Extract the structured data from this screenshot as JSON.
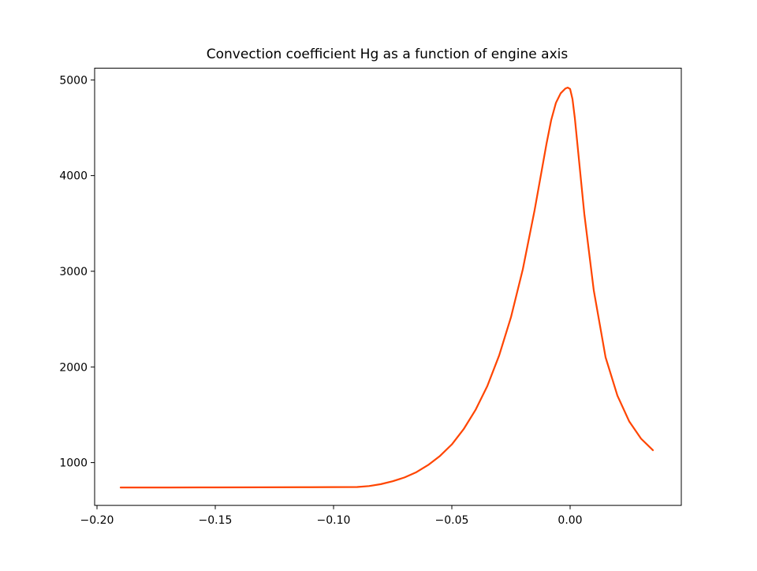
{
  "chart_data": {
    "type": "line",
    "title": "Convection coefficient Hg as a function of engine axis",
    "xlabel": "",
    "ylabel": "",
    "xlim": [
      -0.201,
      0.047
    ],
    "ylim": [
      553,
      5123
    ],
    "x_ticks": [
      -0.2,
      -0.15,
      -0.1,
      -0.05,
      0.0
    ],
    "x_tick_labels": [
      "−0.20",
      "−0.15",
      "−0.10",
      "−0.05",
      "0.00"
    ],
    "y_ticks": [
      1000,
      2000,
      3000,
      4000,
      5000
    ],
    "y_tick_labels": [
      "1000",
      "2000",
      "3000",
      "4000",
      "5000"
    ],
    "grid": false,
    "legend": "none",
    "series": [
      {
        "color": "#ff4500",
        "x": [
          -0.19,
          -0.17,
          -0.15,
          -0.13,
          -0.11,
          -0.09,
          -0.085,
          -0.08,
          -0.075,
          -0.07,
          -0.065,
          -0.06,
          -0.055,
          -0.05,
          -0.045,
          -0.04,
          -0.035,
          -0.03,
          -0.025,
          -0.02,
          -0.015,
          -0.01,
          -0.008,
          -0.006,
          -0.004,
          -0.002,
          -0.001,
          0.0,
          0.001,
          0.002,
          0.004,
          0.006,
          0.008,
          0.01,
          0.015,
          0.02,
          0.025,
          0.03,
          0.035
        ],
        "y": [
          740,
          740,
          741,
          742,
          743,
          745,
          755,
          775,
          805,
          845,
          900,
          975,
          1070,
          1190,
          1350,
          1550,
          1800,
          2120,
          2520,
          3020,
          3640,
          4330,
          4580,
          4760,
          4860,
          4910,
          4920,
          4905,
          4800,
          4600,
          4100,
          3600,
          3200,
          2800,
          2100,
          1700,
          1430,
          1250,
          1130
        ]
      }
    ]
  }
}
